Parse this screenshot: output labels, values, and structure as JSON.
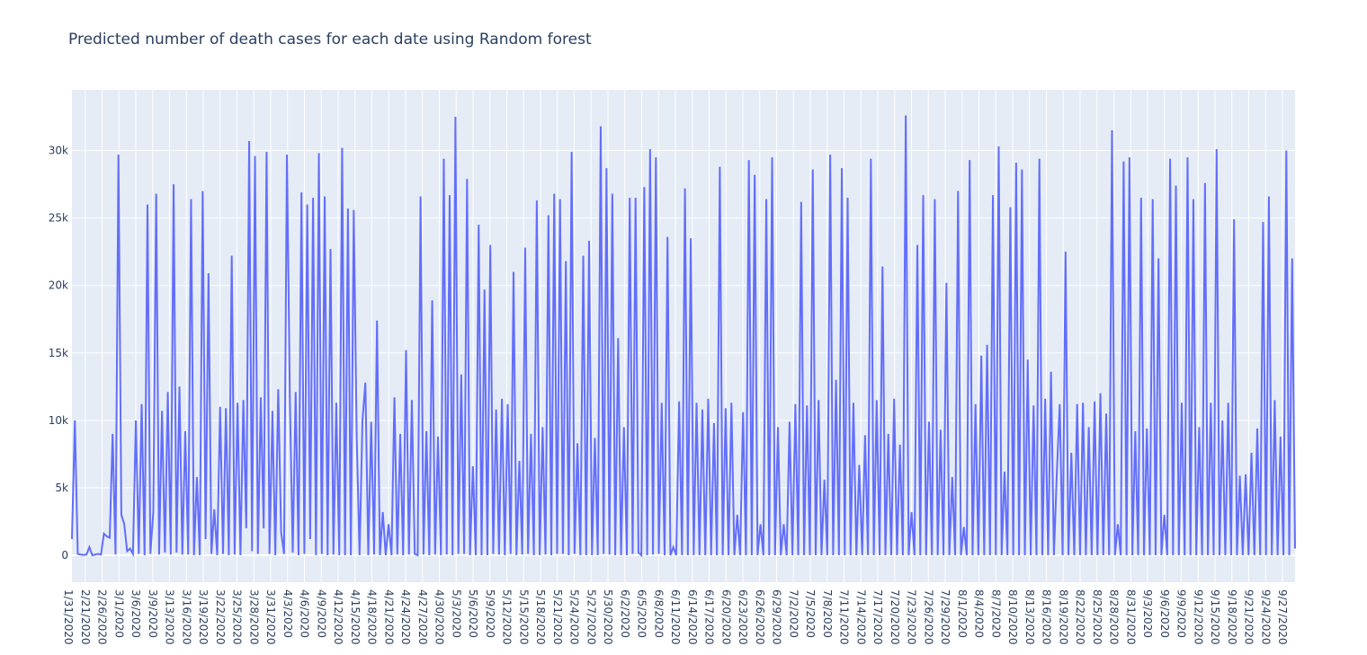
{
  "chart_data": {
    "type": "line",
    "title": "Predicted number of death cases for each date using Random forest",
    "xlabel": "",
    "ylabel": "",
    "ylim": [
      -2000,
      34500
    ],
    "grid": true,
    "legend": "none",
    "colors": {
      "line": "#636efa",
      "plot_bg": "#e5ecf6",
      "grid": "#ffffff",
      "text": "#2a3f5f"
    },
    "y_ticks": [
      {
        "value": 0,
        "label": "0"
      },
      {
        "value": 5000,
        "label": "5k"
      },
      {
        "value": 10000,
        "label": "10k"
      },
      {
        "value": 15000,
        "label": "15k"
      },
      {
        "value": 20000,
        "label": "20k"
      },
      {
        "value": 25000,
        "label": "25k"
      },
      {
        "value": 30000,
        "label": "30k"
      }
    ],
    "x_tick_labels": [
      "1/31/2020",
      "2/21/2020",
      "2/26/2020",
      "3/1/2020",
      "3/6/2020",
      "3/9/2020",
      "3/13/2020",
      "3/16/2020",
      "3/19/2020",
      "3/22/2020",
      "3/25/2020",
      "3/28/2020",
      "3/31/2020",
      "4/3/2020",
      "4/6/2020",
      "4/9/2020",
      "4/12/2020",
      "4/15/2020",
      "4/18/2020",
      "4/21/2020",
      "4/24/2020",
      "4/27/2020",
      "4/30/2020",
      "5/3/2020",
      "5/6/2020",
      "5/9/2020",
      "5/12/2020",
      "5/15/2020",
      "5/18/2020",
      "5/21/2020",
      "5/24/2020",
      "5/27/2020",
      "5/30/2020",
      "6/2/2020",
      "6/5/2020",
      "6/8/2020",
      "6/11/2020",
      "6/14/2020",
      "6/17/2020",
      "6/20/2020",
      "6/23/2020",
      "6/26/2020",
      "6/29/2020",
      "7/2/2020",
      "7/5/2020",
      "7/8/2020",
      "7/11/2020",
      "7/14/2020",
      "7/17/2020",
      "7/20/2020",
      "7/23/2020",
      "7/26/2020",
      "7/29/2020",
      "8/1/2020",
      "8/4/2020",
      "8/7/2020",
      "8/10/2020",
      "8/13/2020",
      "8/16/2020",
      "8/19/2020",
      "8/22/2020",
      "8/25/2020",
      "8/28/2020",
      "8/31/2020",
      "9/3/2020",
      "9/6/2020",
      "9/9/2020",
      "9/12/2020",
      "9/15/2020",
      "9/18/2020",
      "9/21/2020",
      "9/24/2020",
      "9/27/2020"
    ],
    "series": [
      {
        "name": "",
        "values": [
          1200,
          10000,
          100,
          50,
          20,
          50,
          600,
          0,
          50,
          100,
          50,
          1600,
          1400,
          1300,
          9000,
          50,
          29700,
          3000,
          2300,
          300,
          500,
          100,
          10000,
          100,
          11200,
          0,
          26000,
          100,
          3200,
          26800,
          50,
          10700,
          200,
          12100,
          50,
          27500,
          200,
          12500,
          50,
          9200,
          50,
          26400,
          0,
          5800,
          0,
          27000,
          1200,
          20900,
          100,
          3400,
          0,
          11000,
          100,
          10900,
          0,
          22200,
          50,
          11300,
          0,
          11500,
          2000,
          30700,
          300,
          29600,
          100,
          11700,
          2000,
          29900,
          100,
          10700,
          0,
          12300,
          1700,
          100,
          29700,
          11700,
          200,
          12100,
          0,
          26900,
          100,
          26000,
          1200,
          26500,
          0,
          29800,
          100,
          26600,
          0,
          22700,
          50,
          11300,
          0,
          30200,
          0,
          25700,
          0,
          25600,
          8900,
          0,
          10000,
          12800,
          0,
          9900,
          50,
          17400,
          0,
          3200,
          0,
          2300,
          0,
          11700,
          50,
          9000,
          0,
          15200,
          50,
          11500,
          100,
          0,
          26600,
          50,
          9200,
          0,
          18900,
          50,
          8800,
          0,
          29400,
          50,
          26700,
          0,
          32500,
          100,
          13400,
          100,
          27900,
          0,
          6600,
          0,
          24500,
          0,
          19700,
          0,
          23000,
          100,
          10800,
          50,
          11600,
          0,
          11200,
          100,
          21000,
          0,
          7000,
          50,
          22800,
          100,
          9000,
          0,
          26300,
          0,
          9500,
          50,
          25200,
          0,
          26800,
          100,
          26400,
          100,
          21800,
          0,
          29900,
          100,
          8300,
          0,
          22200,
          0,
          23300,
          0,
          8700,
          0,
          31800,
          100,
          28700,
          50,
          26800,
          0,
          16100,
          0,
          9500,
          0,
          26500,
          100,
          26500,
          200,
          0,
          27300,
          0,
          30100,
          50,
          29500,
          100,
          11300,
          0,
          23600,
          0,
          600,
          0,
          11400,
          0,
          27200,
          0,
          23500,
          0,
          11300,
          0,
          10800,
          0,
          11600,
          0,
          9800,
          0,
          28800,
          0,
          10900,
          0,
          11300,
          0,
          3000,
          0,
          10600,
          0,
          29300,
          0,
          28200,
          0,
          2300,
          0,
          26400,
          0,
          29500,
          0,
          9500,
          0,
          2300,
          0,
          9900,
          0,
          11200,
          0,
          26200,
          0,
          11100,
          0,
          28600,
          0,
          11500,
          0,
          5600,
          0,
          29700,
          0,
          13000,
          0,
          28700,
          0,
          26500,
          0,
          11300,
          0,
          6700,
          0,
          8900,
          0,
          29400,
          0,
          11500,
          0,
          21400,
          0,
          9000,
          0,
          11600,
          0,
          8200,
          0,
          32600,
          0,
          3200,
          0,
          23000,
          0,
          26700,
          0,
          9900,
          0,
          26400,
          0,
          9300,
          0,
          20200,
          0,
          5800,
          0,
          27000,
          0,
          2100,
          0,
          29300,
          0,
          11200,
          0,
          14800,
          0,
          15600,
          0,
          26700,
          0,
          30300,
          0,
          6200,
          0,
          25800,
          0,
          29100,
          0,
          28600,
          0,
          14500,
          0,
          11100,
          0,
          29400,
          0,
          11600,
          0,
          13600,
          0,
          6100,
          11200,
          0,
          22500,
          0,
          7600,
          0,
          11200,
          0,
          11300,
          0,
          9500,
          0,
          11400,
          0,
          12000,
          0,
          10500,
          0,
          31500,
          0,
          2300,
          0,
          29200,
          0,
          29500,
          0,
          9200,
          0,
          26500,
          0,
          9400,
          0,
          26400,
          0,
          22000,
          0,
          3000,
          0,
          29400,
          0,
          27400,
          0,
          11300,
          0,
          29500,
          0,
          26400,
          0,
          9500,
          0,
          27600,
          0,
          11300,
          0,
          30100,
          0,
          10000,
          0,
          11300,
          0,
          24900,
          0,
          5900,
          0,
          6000,
          0,
          7600,
          0,
          9400,
          0,
          24700,
          0,
          26600,
          0,
          11500,
          0,
          8800,
          0,
          30000,
          0,
          22000,
          500
        ]
      }
    ]
  }
}
